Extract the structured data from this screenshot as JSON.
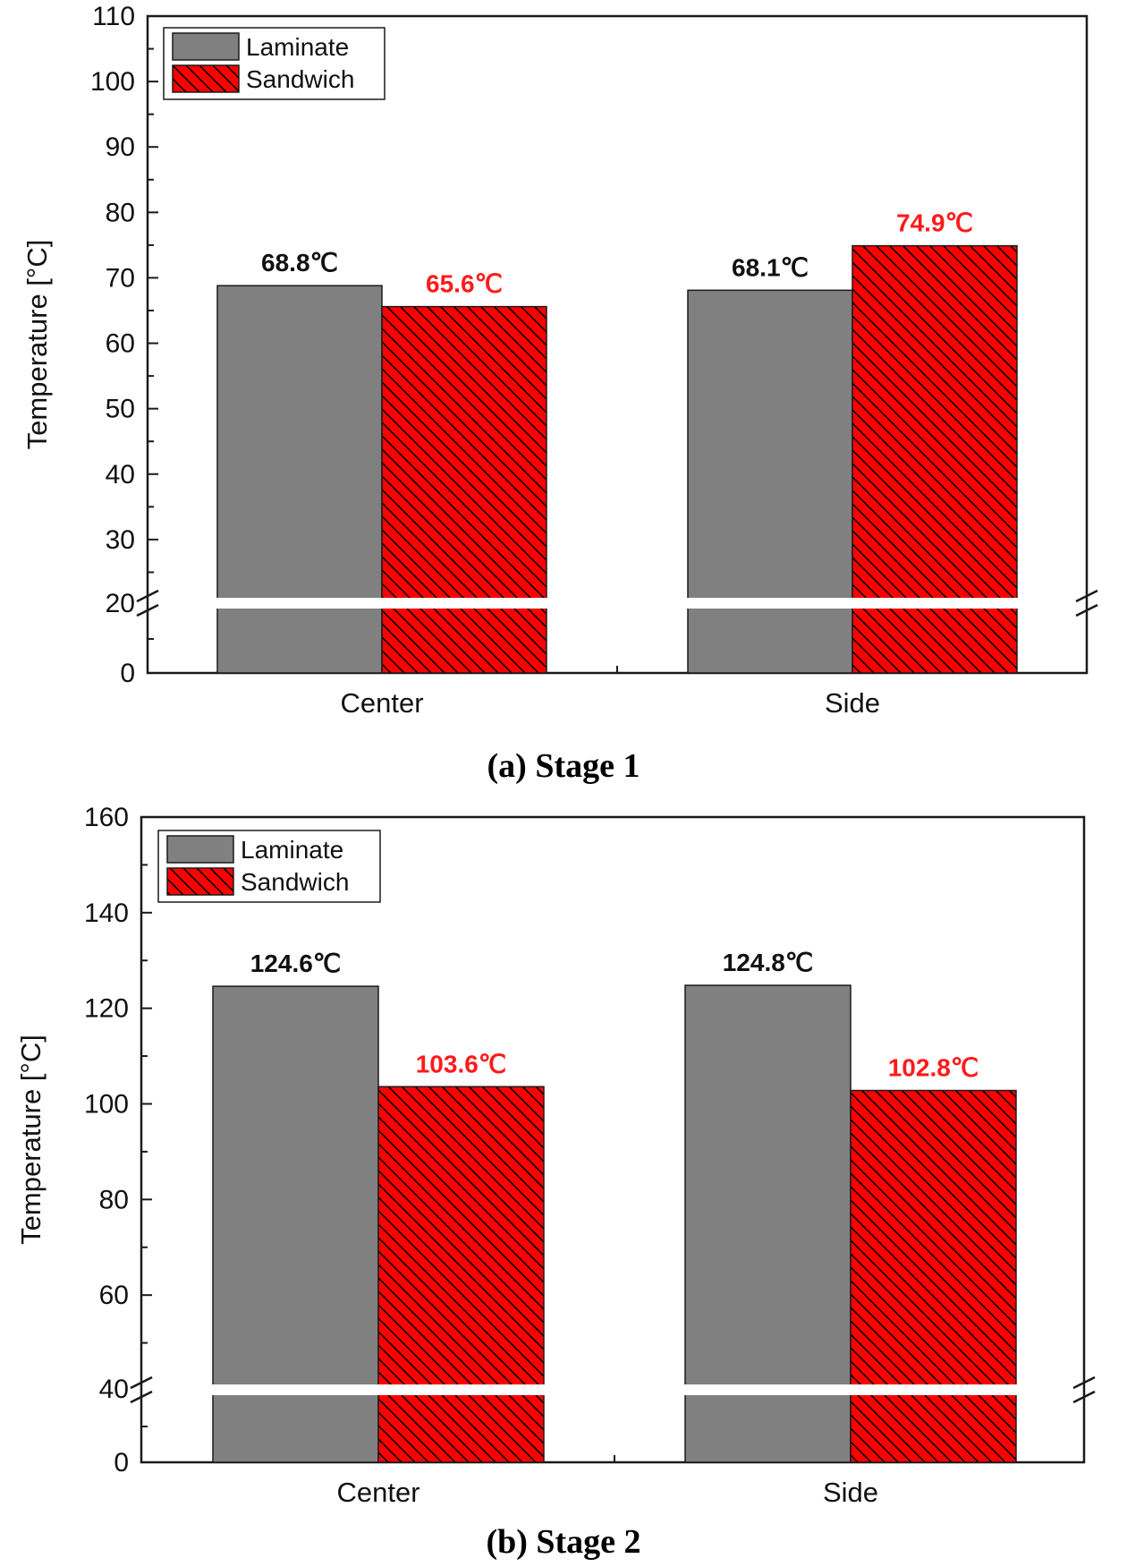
{
  "chart_data": [
    {
      "type": "bar",
      "title": "",
      "caption": "(a)  Stage 1",
      "xlabel": "",
      "ylabel": "Temperature [°C]",
      "categories": [
        "Center",
        "Side"
      ],
      "series": [
        {
          "name": "Laminate",
          "values": [
            68.8,
            68.1
          ],
          "value_labels": [
            "68.8℃",
            "68.1℃"
          ],
          "color": "#808080",
          "label_color": "#111111",
          "pattern": "solid"
        },
        {
          "name": "Sandwich",
          "values": [
            65.6,
            74.9
          ],
          "value_labels": [
            "65.6℃",
            "74.9℃"
          ],
          "color": "#ff0000",
          "label_color": "#ff1a1a",
          "pattern": "hatch"
        }
      ],
      "ylim": [
        0,
        110
      ],
      "axis_break": {
        "from": 0,
        "to": 20
      },
      "yticks": [
        0,
        20,
        30,
        40,
        50,
        60,
        70,
        80,
        90,
        100,
        110
      ],
      "ytick_labels": [
        "0",
        "20",
        "30",
        "40",
        "50",
        "60",
        "70",
        "80",
        "90",
        "100",
        "110"
      ],
      "grid": false,
      "legend_position": "top-left"
    },
    {
      "type": "bar",
      "title": "",
      "caption": "(b)  Stage 2",
      "xlabel": "",
      "ylabel": "Temperature [°C]",
      "categories": [
        "Center",
        "Side"
      ],
      "series": [
        {
          "name": "Laminate",
          "values": [
            124.6,
            124.8
          ],
          "value_labels": [
            "124.6℃",
            "124.8℃"
          ],
          "color": "#808080",
          "label_color": "#111111",
          "pattern": "solid"
        },
        {
          "name": "Sandwich",
          "values": [
            103.6,
            102.8
          ],
          "value_labels": [
            "103.6℃",
            "102.8℃"
          ],
          "color": "#ff0000",
          "label_color": "#ff1a1a",
          "pattern": "hatch"
        }
      ],
      "ylim": [
        0,
        160
      ],
      "axis_break": {
        "from": 0,
        "to": 40
      },
      "yticks": [
        0,
        40,
        60,
        80,
        100,
        120,
        140,
        160
      ],
      "ytick_labels": [
        "0",
        "40",
        "60",
        "80",
        "100",
        "120",
        "140",
        "160"
      ],
      "grid": false,
      "legend_position": "top-left"
    }
  ]
}
